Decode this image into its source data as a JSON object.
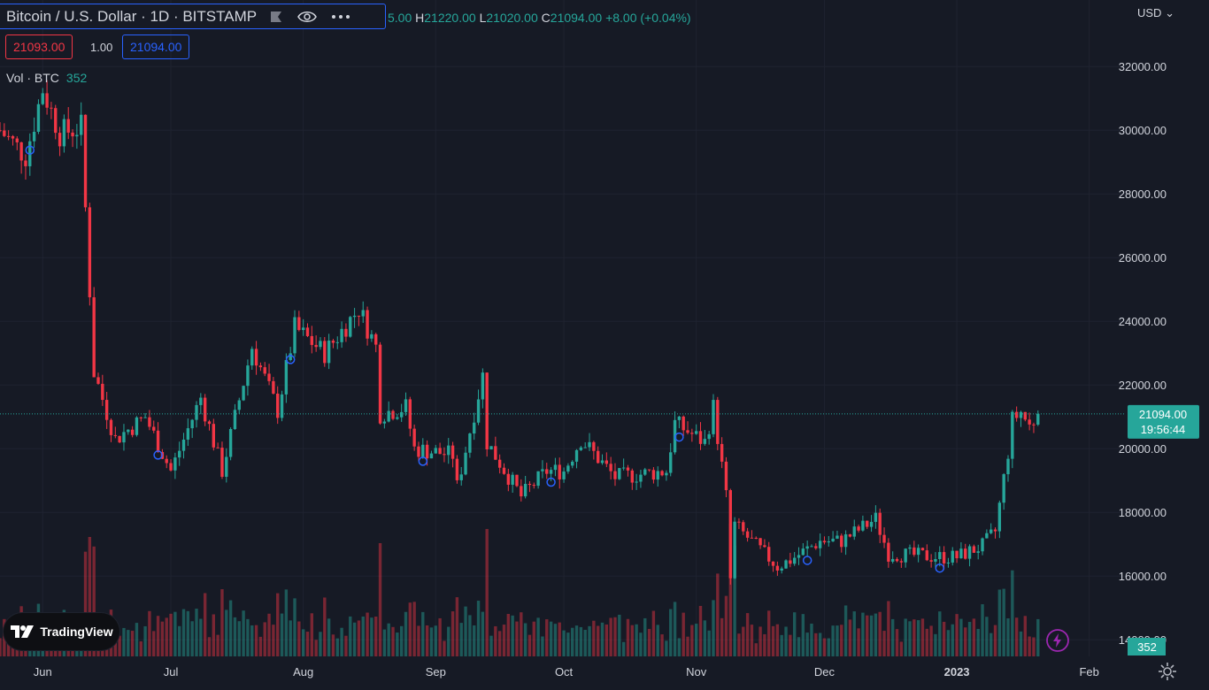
{
  "header": {
    "symbol_title": "Bitcoin / U.S. Dollar · 1D · BITSTAMP",
    "ohlc_open_partial": "5.00",
    "high_key": "H",
    "high": "21220.00",
    "low_key": "L",
    "low": "21020.00",
    "close_key": "C",
    "close": "21094.00",
    "change": "+8.00 (+0.04%)"
  },
  "trade": {
    "sell_price": "21093.00",
    "spread": "1.00",
    "buy_price": "21094.00"
  },
  "volume_legend": {
    "label": "Vol · BTC",
    "value": "352"
  },
  "currency": "USD",
  "price_label": {
    "price": "21094.00",
    "countdown": "19:56:44"
  },
  "volume_label": "352",
  "branding": "TradingView",
  "icons": [
    "eye-icon",
    "more-icon",
    "flag-icon",
    "lightning-icon",
    "gear-icon",
    "tradingview-logo"
  ],
  "colors": {
    "up": "#26a69a",
    "down": "#f23645",
    "background": "#161a25",
    "grid": "#1f2330",
    "accent": "#2962ff",
    "event": "#9c27b0"
  },
  "chart_data": {
    "type": "candlestick",
    "instrument": "BTCUSD",
    "interval": "1D",
    "exchange": "BITSTAMP",
    "y_ticks": [
      "32000.00",
      "30000.00",
      "28000.00",
      "26000.00",
      "24000.00",
      "22000.00",
      "20000.00",
      "18000.00",
      "16000.00",
      "14000.00"
    ],
    "x_ticks": [
      "Jun",
      "Jul",
      "Aug",
      "Sep",
      "Oct",
      "Nov",
      "Dec",
      "2023",
      "Feb"
    ],
    "ylim": [
      13700,
      33700
    ],
    "x": [
      "2022-05-22",
      "2023-02-05"
    ],
    "current_price": 21094,
    "price_path_keypoints": [
      [
        "2022-05-22",
        30000
      ],
      [
        "2022-05-28",
        29200
      ],
      [
        "2022-06-01",
        31300
      ],
      [
        "2022-06-05",
        29900
      ],
      [
        "2022-06-10",
        30100
      ],
      [
        "2022-06-13",
        22400
      ],
      [
        "2022-06-18",
        20300
      ],
      [
        "2022-06-25",
        21000
      ],
      [
        "2022-07-01",
        19300
      ],
      [
        "2022-07-08",
        21600
      ],
      [
        "2022-07-13",
        19300
      ],
      [
        "2022-07-20",
        23200
      ],
      [
        "2022-07-26",
        21200
      ],
      [
        "2022-07-30",
        23800
      ],
      [
        "2022-08-06",
        23000
      ],
      [
        "2022-08-14",
        24400
      ],
      [
        "2022-08-18",
        23200
      ],
      [
        "2022-08-19",
        21100
      ],
      [
        "2022-08-25",
        21300
      ],
      [
        "2022-08-27",
        20000
      ],
      [
        "2022-09-05",
        19800
      ],
      [
        "2022-09-06",
        18800
      ],
      [
        "2022-09-12",
        22300
      ],
      [
        "2022-09-13",
        20200
      ],
      [
        "2022-09-21",
        18500
      ],
      [
        "2022-09-27",
        19300
      ],
      [
        "2022-10-01",
        19300
      ],
      [
        "2022-10-05",
        20300
      ],
      [
        "2022-10-13",
        19100
      ],
      [
        "2022-10-25",
        19300
      ],
      [
        "2022-10-27",
        20800
      ],
      [
        "2022-11-03",
        20200
      ],
      [
        "2022-11-05",
        21300
      ],
      [
        "2022-11-08",
        18500
      ],
      [
        "2022-11-09",
        15900
      ],
      [
        "2022-11-10",
        17600
      ],
      [
        "2022-11-20",
        16300
      ],
      [
        "2022-11-23",
        16500
      ],
      [
        "2022-11-30",
        17100
      ],
      [
        "2022-12-05",
        17100
      ],
      [
        "2022-12-13",
        17800
      ],
      [
        "2022-12-16",
        16700
      ],
      [
        "2022-12-28",
        16600
      ],
      [
        "2023-01-01",
        16600
      ],
      [
        "2023-01-07",
        16950
      ],
      [
        "2023-01-10",
        17400
      ],
      [
        "2023-01-13",
        19900
      ],
      [
        "2023-01-14",
        20900
      ],
      [
        "2023-01-16",
        21150
      ],
      [
        "2023-01-18",
        20700
      ],
      [
        "2023-01-20",
        21094
      ]
    ]
  }
}
